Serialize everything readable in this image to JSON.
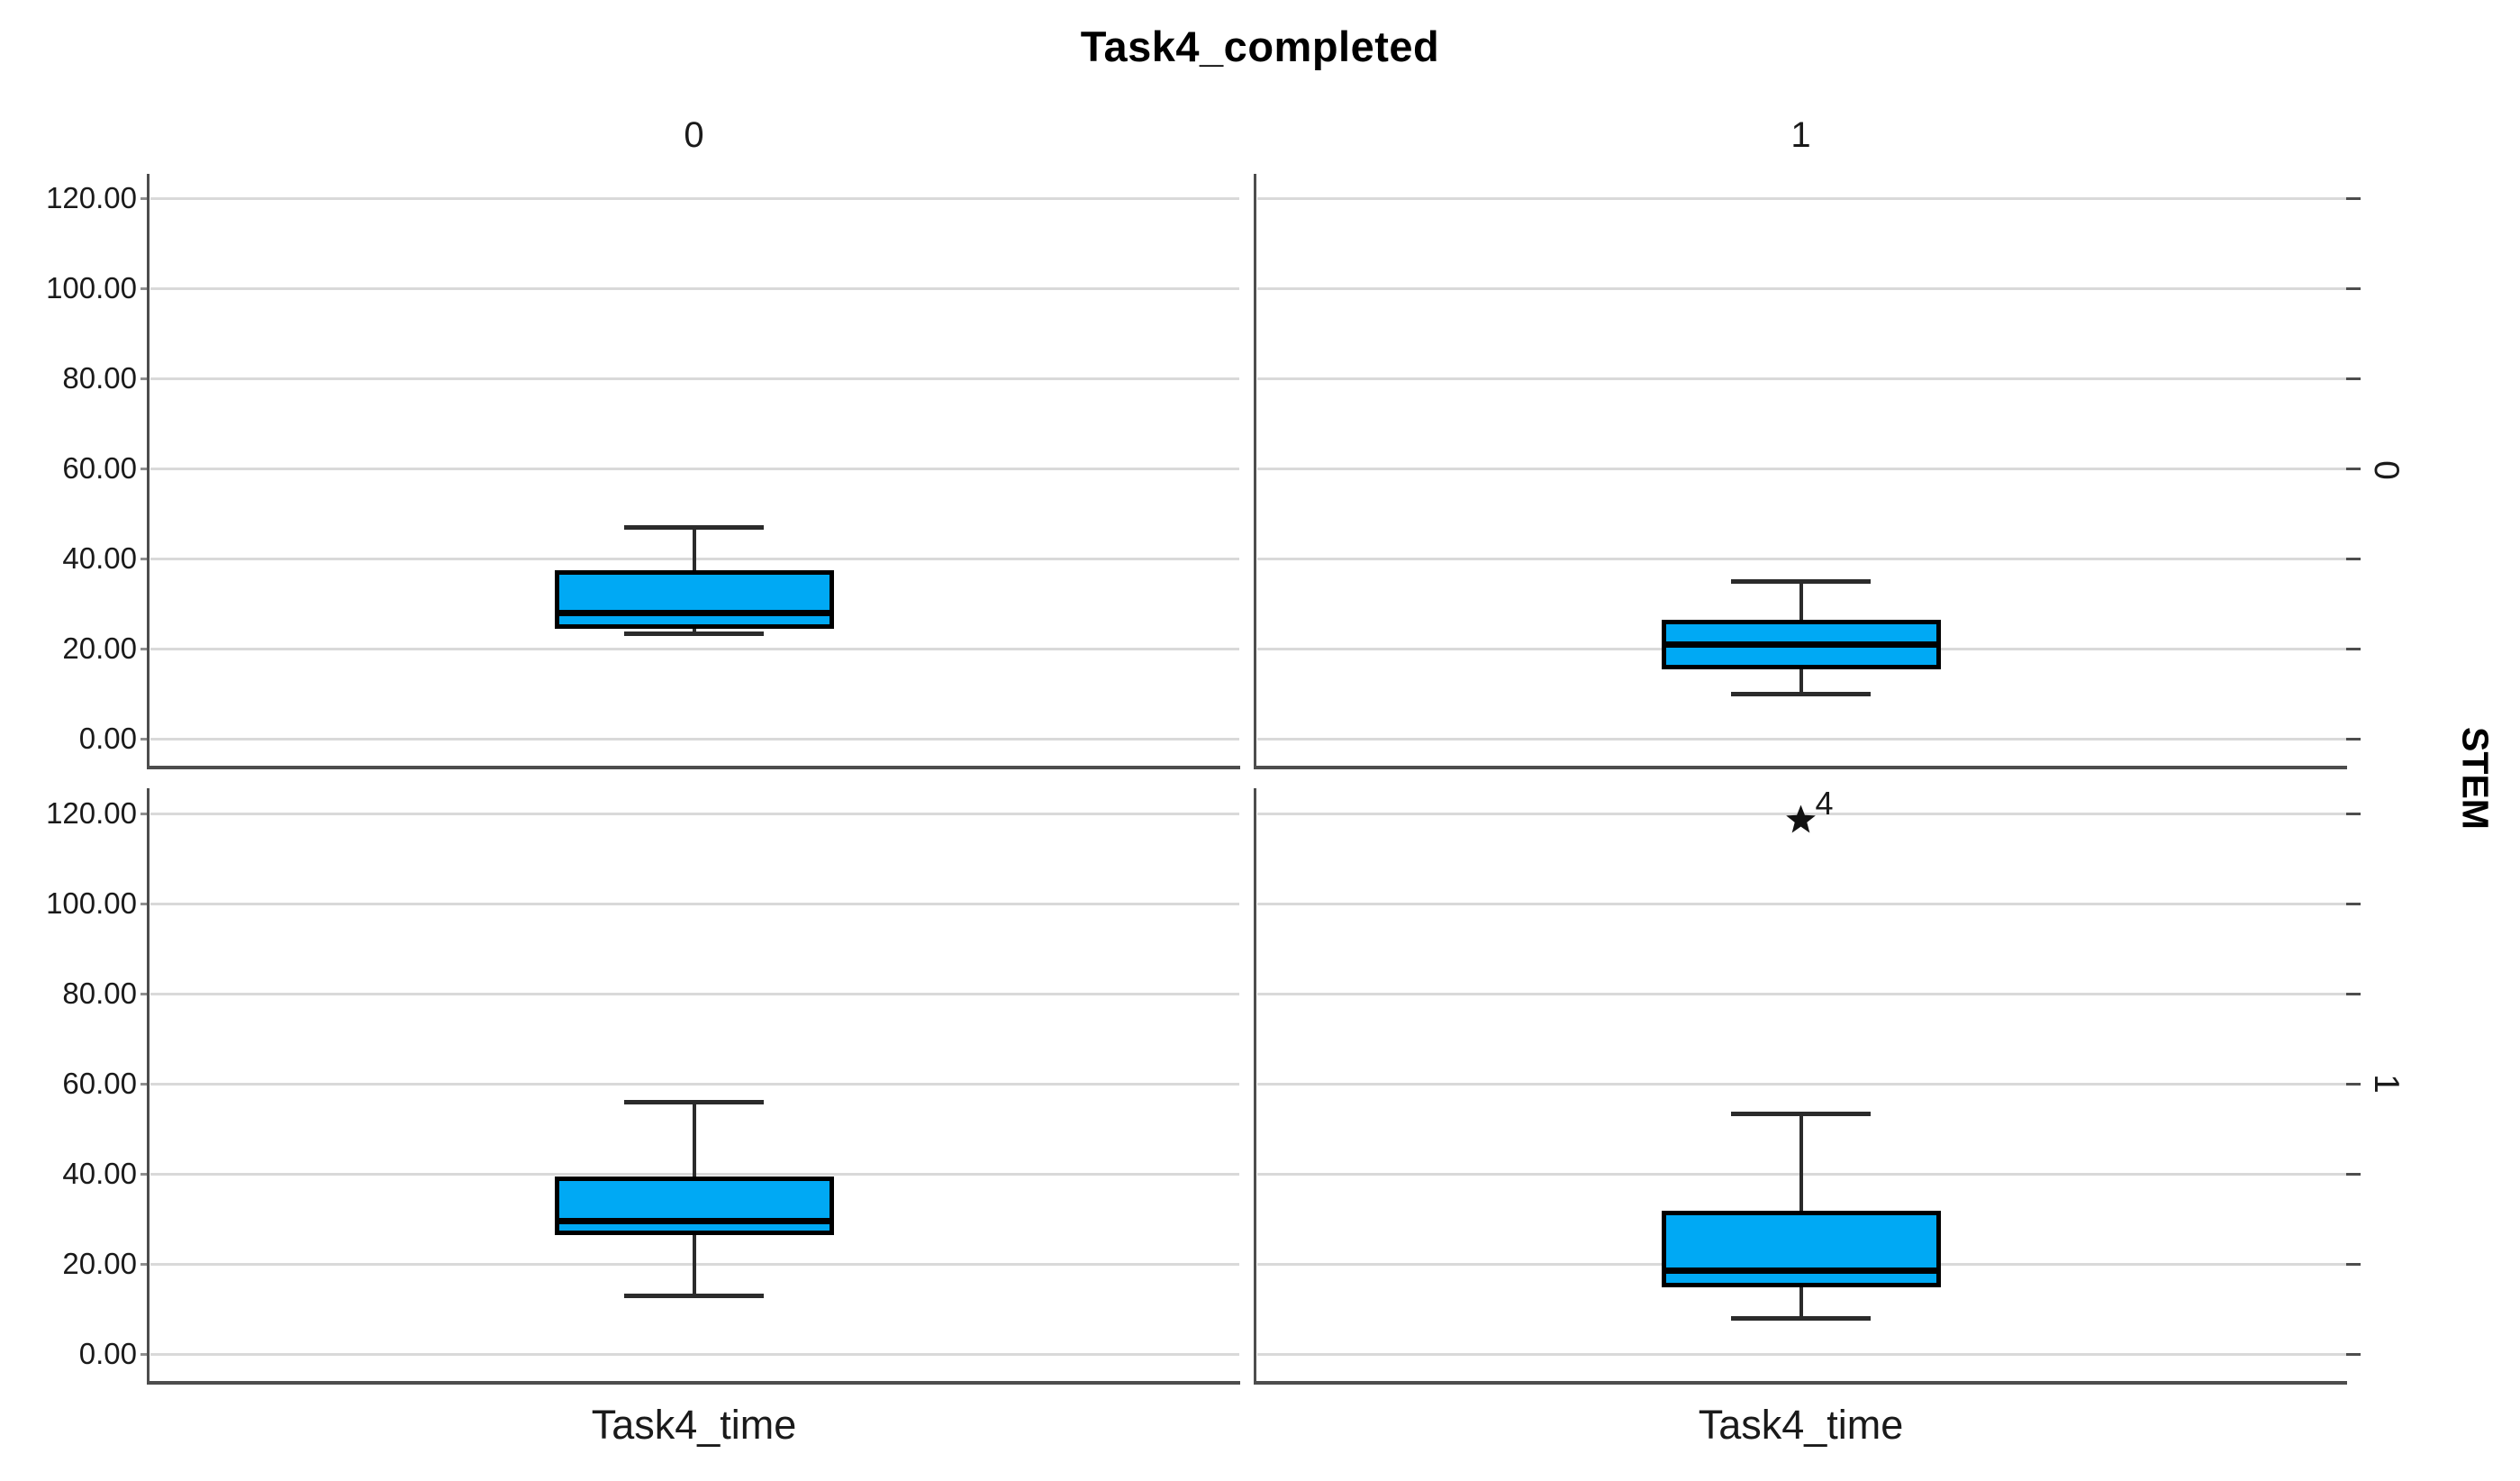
{
  "chart_data": {
    "type": "boxplot",
    "title": "Task4_completed",
    "column_facet": {
      "variable": "Task4_completed",
      "values": [
        "0",
        "1"
      ]
    },
    "row_facet": {
      "variable": "STEM",
      "values": [
        "0",
        "1"
      ]
    },
    "x_axis": {
      "category_label": "Task4_time"
    },
    "y_axis": {
      "min": 0,
      "max": 120,
      "tick_step": 20,
      "tick_values": [
        120,
        100,
        80,
        60,
        40,
        20,
        0
      ],
      "tick_labels": [
        "120.00",
        "100.00",
        "80.00",
        "60.00",
        "40.00",
        "20.00",
        "0.00"
      ],
      "grid": true
    },
    "legend": null,
    "panels": [
      {
        "row": "0",
        "column": "0",
        "box": {
          "whisker_low": 23.5,
          "q1": 25,
          "median": 28,
          "q3": 37,
          "whisker_high": 47
        },
        "outliers": []
      },
      {
        "row": "0",
        "column": "1",
        "box": {
          "whisker_low": 10,
          "q1": 16,
          "median": 21,
          "q3": 26,
          "whisker_high": 35
        },
        "outliers": []
      },
      {
        "row": "1",
        "column": "0",
        "box": {
          "whisker_low": 13,
          "q1": 27,
          "median": 29.5,
          "q3": 39,
          "whisker_high": 56
        },
        "outliers": []
      },
      {
        "row": "1",
        "column": "1",
        "box": {
          "whisker_low": 8,
          "q1": 15.5,
          "median": 18.5,
          "q3": 31.5,
          "whisker_high": 53.5
        },
        "outliers": [
          {
            "value": 118.5,
            "case_label": "4",
            "marker": "extreme-star"
          }
        ]
      }
    ],
    "style": {
      "box_fill": "#00A9F4",
      "box_border": "#000000",
      "median_line": "#000000",
      "whisker": "#2b2b2b",
      "gridline": "#D9D9D9",
      "panel_border": "#4d4d4d",
      "outer_tick": "#4d4d4d",
      "minor_left_tick": "#8f8f8f",
      "text": "#1a1a1a",
      "background": "#ffffff"
    }
  }
}
